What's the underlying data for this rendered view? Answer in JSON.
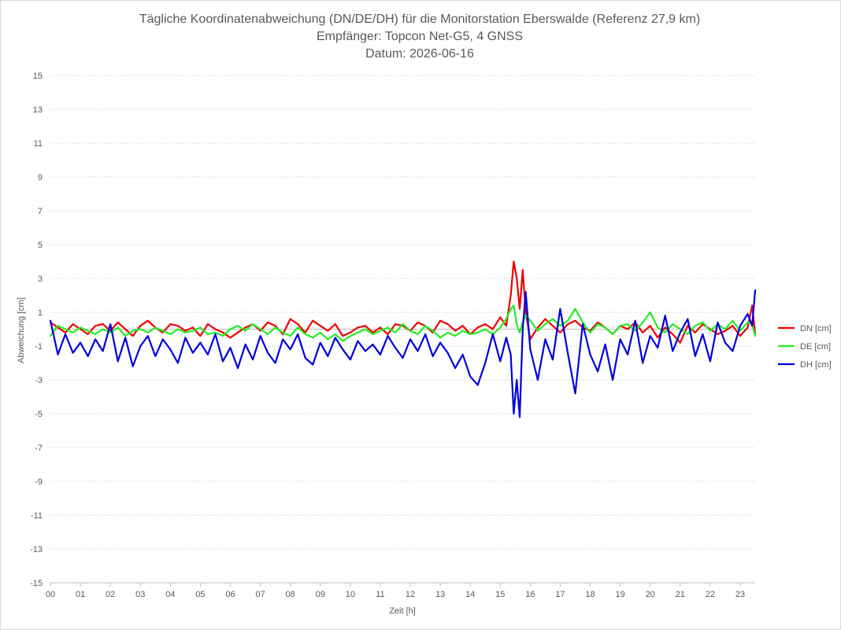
{
  "chart_data": {
    "type": "line",
    "title_lines": [
      "Tägliche Koordinatenabweichung (DN/DE/DH) für die Monitorstation Eberswalde (Referenz 27,9 km)",
      "Empfänger: Topcon Net-G5, 4 GNSS",
      "Datum: 2026-06-16"
    ],
    "xlabel": "Zeit [h]",
    "ylabel": "Abweichung [cm]",
    "xlim": [
      0,
      23.5
    ],
    "ylim": [
      -15,
      15
    ],
    "x_tick_labels": [
      "00",
      "01",
      "02",
      "03",
      "04",
      "05",
      "06",
      "07",
      "08",
      "09",
      "10",
      "11",
      "12",
      "13",
      "14",
      "15",
      "16",
      "17",
      "18",
      "19",
      "20",
      "21",
      "22",
      "23"
    ],
    "y_tick_labels": [
      "15",
      "13",
      "11",
      "9",
      "7",
      "5",
      "3",
      "1",
      "-1",
      "-3",
      "-5",
      "-7",
      "-9",
      "-11",
      "-13",
      "-15"
    ],
    "grid": true,
    "legend_position": "right",
    "series": [
      {
        "name": "DN [cm]",
        "color": "#ee0000",
        "x": [
          0,
          0.25,
          0.5,
          0.75,
          1,
          1.25,
          1.5,
          1.75,
          2,
          2.25,
          2.5,
          2.75,
          3,
          3.25,
          3.5,
          3.75,
          4,
          4.25,
          4.5,
          4.75,
          5,
          5.25,
          5.5,
          5.75,
          6,
          6.25,
          6.5,
          6.75,
          7,
          7.25,
          7.5,
          7.75,
          8,
          8.25,
          8.5,
          8.75,
          9,
          9.25,
          9.5,
          9.75,
          10,
          10.25,
          10.5,
          10.75,
          11,
          11.25,
          11.5,
          11.75,
          12,
          12.25,
          12.5,
          12.75,
          13,
          13.25,
          13.5,
          13.75,
          14,
          14.25,
          14.5,
          14.75,
          15,
          15.2,
          15.35,
          15.45,
          15.55,
          15.65,
          15.75,
          15.85,
          16,
          16.25,
          16.5,
          16.75,
          17,
          17.25,
          17.5,
          17.75,
          18,
          18.25,
          18.5,
          18.75,
          19,
          19.25,
          19.5,
          19.75,
          20,
          20.25,
          20.5,
          20.75,
          21,
          21.25,
          21.5,
          21.75,
          22,
          22.25,
          22.5,
          22.75,
          23,
          23.25,
          23.4,
          23.5
        ],
        "y": [
          0.4,
          0.1,
          -0.2,
          0.3,
          0.0,
          -0.3,
          0.2,
          0.3,
          -0.1,
          0.4,
          0.0,
          -0.4,
          0.2,
          0.5,
          0.1,
          -0.2,
          0.3,
          0.2,
          -0.1,
          0.1,
          -0.4,
          0.3,
          0.0,
          -0.2,
          -0.5,
          -0.2,
          0.1,
          0.3,
          -0.1,
          0.4,
          0.2,
          -0.3,
          0.6,
          0.3,
          -0.2,
          0.5,
          0.2,
          -0.1,
          0.3,
          -0.4,
          -0.2,
          0.1,
          0.2,
          -0.2,
          0.1,
          -0.3,
          0.3,
          0.2,
          -0.1,
          0.4,
          0.2,
          -0.2,
          0.5,
          0.3,
          -0.1,
          0.2,
          -0.3,
          0.1,
          0.3,
          0.0,
          0.7,
          0.2,
          2.0,
          4.0,
          3.0,
          1.2,
          3.5,
          1.0,
          -0.6,
          0.1,
          0.6,
          0.2,
          -0.2,
          0.3,
          0.5,
          0.1,
          -0.1,
          0.4,
          0.1,
          -0.3,
          0.2,
          0.0,
          0.4,
          -0.2,
          0.2,
          -0.5,
          0.1,
          -0.3,
          -0.8,
          0.2,
          -0.2,
          0.3,
          0.0,
          -0.3,
          -0.1,
          0.2,
          -0.4,
          0.1,
          1.4,
          -0.3
        ]
      },
      {
        "name": "DE [cm]",
        "color": "#22ee22",
        "x": [
          0,
          0.25,
          0.5,
          0.75,
          1,
          1.25,
          1.5,
          1.75,
          2,
          2.25,
          2.5,
          2.75,
          3,
          3.25,
          3.5,
          3.75,
          4,
          4.25,
          4.5,
          4.75,
          5,
          5.25,
          5.5,
          5.75,
          6,
          6.25,
          6.5,
          6.75,
          7,
          7.25,
          7.5,
          7.75,
          8,
          8.25,
          8.5,
          8.75,
          9,
          9.25,
          9.5,
          9.75,
          10,
          10.25,
          10.5,
          10.75,
          11,
          11.25,
          11.5,
          11.75,
          12,
          12.25,
          12.5,
          12.75,
          13,
          13.25,
          13.5,
          13.75,
          14,
          14.25,
          14.5,
          14.75,
          15,
          15.2,
          15.35,
          15.45,
          15.55,
          15.65,
          15.75,
          15.85,
          16,
          16.25,
          16.5,
          16.75,
          17,
          17.25,
          17.5,
          17.75,
          18,
          18.25,
          18.5,
          18.75,
          19,
          19.25,
          19.5,
          19.75,
          20,
          20.25,
          20.5,
          20.75,
          21,
          21.25,
          21.5,
          21.75,
          22,
          22.25,
          22.5,
          22.75,
          23,
          23.25,
          23.4,
          23.5
        ],
        "y": [
          -0.4,
          0.2,
          0.0,
          -0.2,
          0.1,
          -0.1,
          -0.3,
          0.0,
          -0.2,
          0.1,
          -0.4,
          -0.1,
          0.0,
          -0.2,
          0.1,
          -0.1,
          -0.3,
          0.0,
          -0.2,
          -0.1,
          0.1,
          -0.3,
          -0.2,
          -0.4,
          0.0,
          0.2,
          -0.1,
          0.3,
          0.0,
          -0.3,
          0.1,
          -0.2,
          -0.4,
          0.1,
          -0.3,
          -0.5,
          -0.2,
          -0.6,
          -0.3,
          -0.7,
          -0.4,
          -0.2,
          0.0,
          -0.3,
          -0.1,
          0.1,
          -0.2,
          0.3,
          -0.1,
          -0.3,
          0.2,
          -0.1,
          -0.5,
          -0.2,
          -0.4,
          -0.1,
          -0.3,
          -0.2,
          0.0,
          -0.3,
          0.1,
          0.6,
          1.2,
          1.4,
          0.3,
          -0.2,
          0.4,
          0.8,
          0.5,
          -0.1,
          0.3,
          0.6,
          0.2,
          0.5,
          1.2,
          0.4,
          -0.2,
          0.3,
          0.1,
          -0.3,
          0.2,
          0.3,
          -0.1,
          0.4,
          1.0,
          0.1,
          -0.2,
          0.3,
          0.0,
          -0.3,
          0.2,
          0.4,
          -0.1,
          0.3,
          0.0,
          0.5,
          -0.1,
          0.4,
          0.3,
          -0.4
        ]
      },
      {
        "name": "DH [cm]",
        "color": "#0000dd",
        "x": [
          0,
          0.25,
          0.5,
          0.75,
          1,
          1.25,
          1.5,
          1.75,
          2,
          2.25,
          2.5,
          2.75,
          3,
          3.25,
          3.5,
          3.75,
          4,
          4.25,
          4.5,
          4.75,
          5,
          5.25,
          5.5,
          5.75,
          6,
          6.25,
          6.5,
          6.75,
          7,
          7.25,
          7.5,
          7.75,
          8,
          8.25,
          8.5,
          8.75,
          9,
          9.25,
          9.5,
          9.75,
          10,
          10.25,
          10.5,
          10.75,
          11,
          11.25,
          11.5,
          11.75,
          12,
          12.25,
          12.5,
          12.75,
          13,
          13.25,
          13.5,
          13.75,
          14,
          14.25,
          14.5,
          14.75,
          15,
          15.2,
          15.35,
          15.45,
          15.55,
          15.65,
          15.75,
          15.85,
          16,
          16.25,
          16.5,
          16.75,
          17,
          17.25,
          17.5,
          17.75,
          18,
          18.25,
          18.5,
          18.75,
          19,
          19.25,
          19.5,
          19.75,
          20,
          20.25,
          20.5,
          20.75,
          21,
          21.25,
          21.5,
          21.75,
          22,
          22.25,
          22.5,
          22.75,
          23,
          23.25,
          23.4,
          23.5
        ],
        "y": [
          0.5,
          -1.5,
          -0.3,
          -1.4,
          -0.8,
          -1.6,
          -0.6,
          -1.3,
          0.3,
          -1.9,
          -0.5,
          -2.2,
          -1.0,
          -0.4,
          -1.6,
          -0.6,
          -1.2,
          -2.0,
          -0.5,
          -1.4,
          -0.8,
          -1.5,
          -0.3,
          -1.9,
          -1.1,
          -2.3,
          -0.9,
          -1.8,
          -0.4,
          -1.4,
          -2.0,
          -0.6,
          -1.2,
          -0.3,
          -1.7,
          -2.1,
          -0.8,
          -1.6,
          -0.5,
          -1.2,
          -1.8,
          -0.7,
          -1.3,
          -0.9,
          -1.5,
          -0.4,
          -1.1,
          -1.7,
          -0.6,
          -1.3,
          -0.3,
          -1.6,
          -0.8,
          -1.4,
          -2.3,
          -1.5,
          -2.8,
          -3.3,
          -2.0,
          -0.3,
          -1.9,
          -0.5,
          -1.5,
          -5.0,
          -3.0,
          -5.2,
          0.0,
          2.2,
          -1.2,
          -3.0,
          -0.6,
          -1.8,
          1.2,
          -1.4,
          -3.8,
          0.3,
          -1.5,
          -2.5,
          -0.9,
          -3.0,
          -0.6,
          -1.5,
          0.5,
          -2.0,
          -0.4,
          -1.1,
          0.8,
          -1.3,
          -0.2,
          0.6,
          -1.6,
          -0.3,
          -1.9,
          0.4,
          -0.8,
          -1.3,
          0.2,
          0.9,
          0.2,
          2.3
        ]
      }
    ]
  }
}
